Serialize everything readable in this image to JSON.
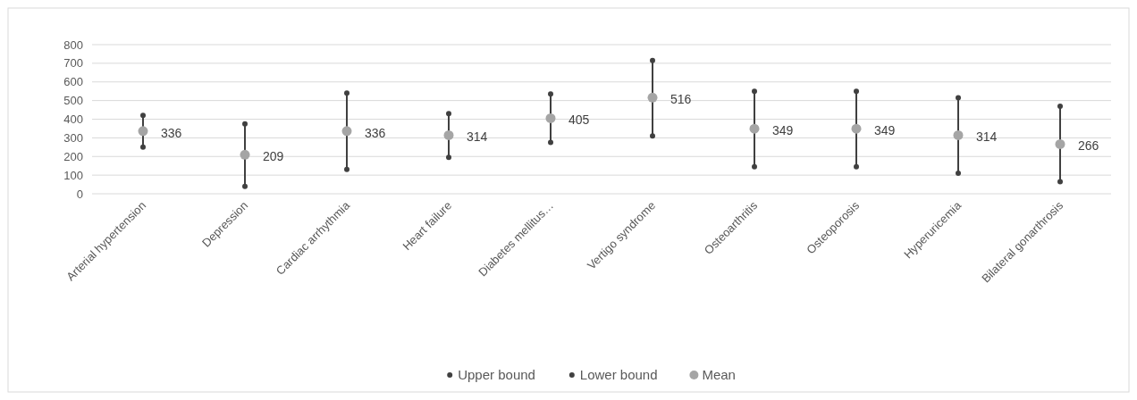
{
  "chart_data": {
    "type": "scatter",
    "categories": [
      "Arterial hypertension",
      "Depression",
      "Cardiac arrhythmia",
      "Heart failure",
      "Diabetes mellitus…",
      "Vertigo syndrome",
      "Osteoarthritis",
      "Osteoporosis",
      "Hyperuricemia",
      "Bilateral gonarthrosis"
    ],
    "series": [
      {
        "name": "Upper bound",
        "color": "#404040",
        "values": [
          420,
          375,
          540,
          430,
          535,
          715,
          550,
          550,
          515,
          470
        ]
      },
      {
        "name": "Lower bound",
        "color": "#404040",
        "values": [
          250,
          40,
          130,
          195,
          275,
          310,
          145,
          145,
          110,
          65
        ]
      },
      {
        "name": "Mean",
        "color": "#a5a5a5",
        "values": [
          336,
          209,
          336,
          314,
          405,
          516,
          349,
          349,
          314,
          266
        ],
        "value_labels": [
          "336",
          "209",
          "336",
          "314",
          "405",
          "516",
          "349",
          "349",
          "314",
          "266"
        ]
      }
    ],
    "ylim": [
      0,
      800
    ],
    "yticks": [
      0,
      100,
      200,
      300,
      400,
      500,
      600,
      700,
      800
    ],
    "grid": "y",
    "legend": "bottom",
    "marker": "circle"
  }
}
